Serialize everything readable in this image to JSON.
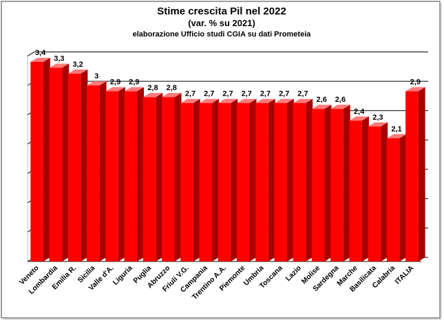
{
  "chart_data": {
    "type": "bar",
    "title": "Stime crescita Pil nel 2022",
    "subtitle": "(var. % su 2021)",
    "note": "elaborazione Ufficio studi CGIA su dati Prometeia",
    "categories": [
      "Veneto",
      "Lombardia",
      "Emilia R.",
      "Sicilia",
      "Valle d'A.",
      "Liguria",
      "Puglia",
      "Abruzzo",
      "Friuli V.G.",
      "Campania",
      "Trentino A.A.",
      "Piemonte",
      "Umbria",
      "Toscana",
      "Lazio",
      "Molise",
      "Sardegna",
      "Marche",
      "Basilicata",
      "Calabria",
      "ITALIA"
    ],
    "values": [
      3.4,
      3.3,
      3.2,
      3,
      2.9,
      2.9,
      2.8,
      2.8,
      2.7,
      2.7,
      2.7,
      2.7,
      2.7,
      2.7,
      2.7,
      2.6,
      2.6,
      2.4,
      2.3,
      2.1,
      2.9
    ],
    "labels": [
      "3,4",
      "3,3",
      "3,2",
      "3",
      "2,9",
      "2,9",
      "2,8",
      "2,8",
      "2,7",
      "2,7",
      "2,7",
      "2,7",
      "2,7",
      "2,7",
      "2,7",
      "2,6",
      "2,6",
      "2,4",
      "2,3",
      "2,1",
      "2,9"
    ],
    "ylim": [
      0,
      3.5
    ],
    "grid": true,
    "xlabel": "",
    "ylabel": "",
    "colors": {
      "bar_front": "#ff0000",
      "bar_side": "#a60000",
      "bar_top": "#ff7a7a",
      "grid": "#000000",
      "border": "#7f7f7f"
    }
  }
}
